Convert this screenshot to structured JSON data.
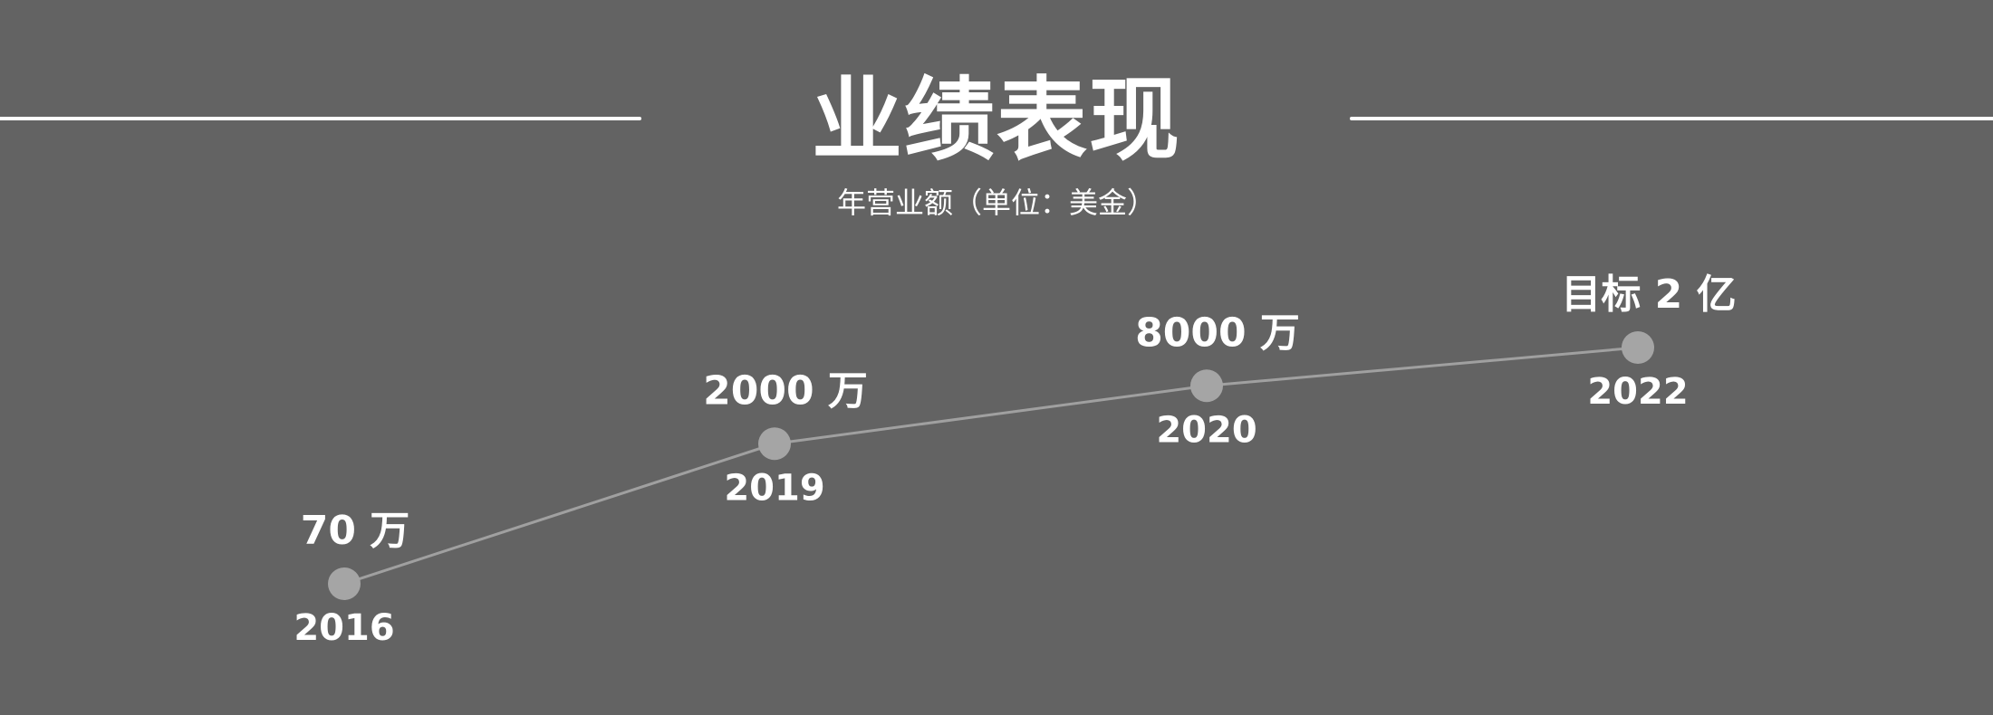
{
  "title": "业绩表现",
  "subtitle": "年营业额（单位：美金）",
  "colors": {
    "background": "#636363",
    "text": "#ffffff",
    "line": "#a0a0a0",
    "marker": "#a5a5a5"
  },
  "chart_data": {
    "type": "line",
    "title": "业绩表现",
    "subtitle": "年营业额（单位：美金）",
    "xlabel": "",
    "ylabel": "",
    "grid": false,
    "legend": "none",
    "x": [
      "2016",
      "2019",
      "2020",
      "2022"
    ],
    "values": [
      70,
      2000,
      8000,
      20000
    ],
    "unit": "万",
    "point_labels": [
      "70 万",
      "2000 万",
      "8000 万",
      "目标 2 亿"
    ],
    "x_labels": [
      "2016",
      "2019",
      "2020",
      "2022"
    ]
  }
}
